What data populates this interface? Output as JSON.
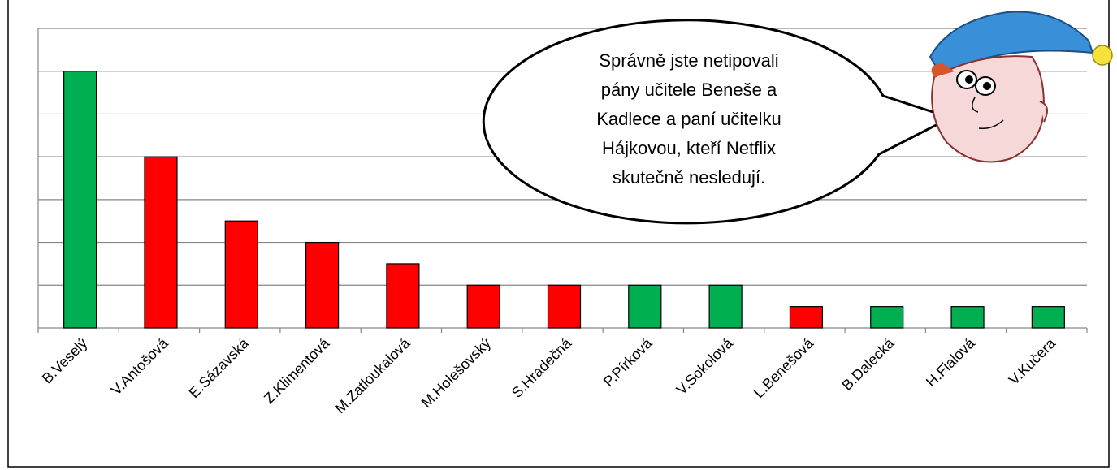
{
  "chart_data": {
    "type": "bar",
    "categories": [
      "B.Veselý",
      "V.Antošová",
      "E.Sázavská",
      "Z.Klimentová",
      "M.Zatloukalová",
      "M.Holešovský",
      "S.Hradečná",
      "P.Pírková",
      "V.Sokolová",
      "L.Benešová",
      "B.Dalecká",
      "H.Fialová",
      "V.Kučera"
    ],
    "values": [
      6,
      4,
      2.5,
      2,
      1.5,
      1,
      1,
      1,
      1,
      0.5,
      0.5,
      0.5,
      0.5
    ],
    "colors": [
      "#00b050",
      "#ff0000",
      "#ff0000",
      "#ff0000",
      "#ff0000",
      "#ff0000",
      "#ff0000",
      "#00b050",
      "#00b050",
      "#ff0000",
      "#00b050",
      "#00b050",
      "#00b050"
    ],
    "ylim": [
      0,
      7
    ],
    "yticks": [
      0,
      1,
      2,
      3,
      4,
      5,
      6,
      7
    ],
    "grid": true
  },
  "bubble": {
    "lines": [
      "Správně jste netipovali",
      "pány učitele Beneše a",
      "Kadlece a paní učitelku",
      "Hájkovou, kteří Netflix",
      "skutečně nesledují."
    ]
  }
}
